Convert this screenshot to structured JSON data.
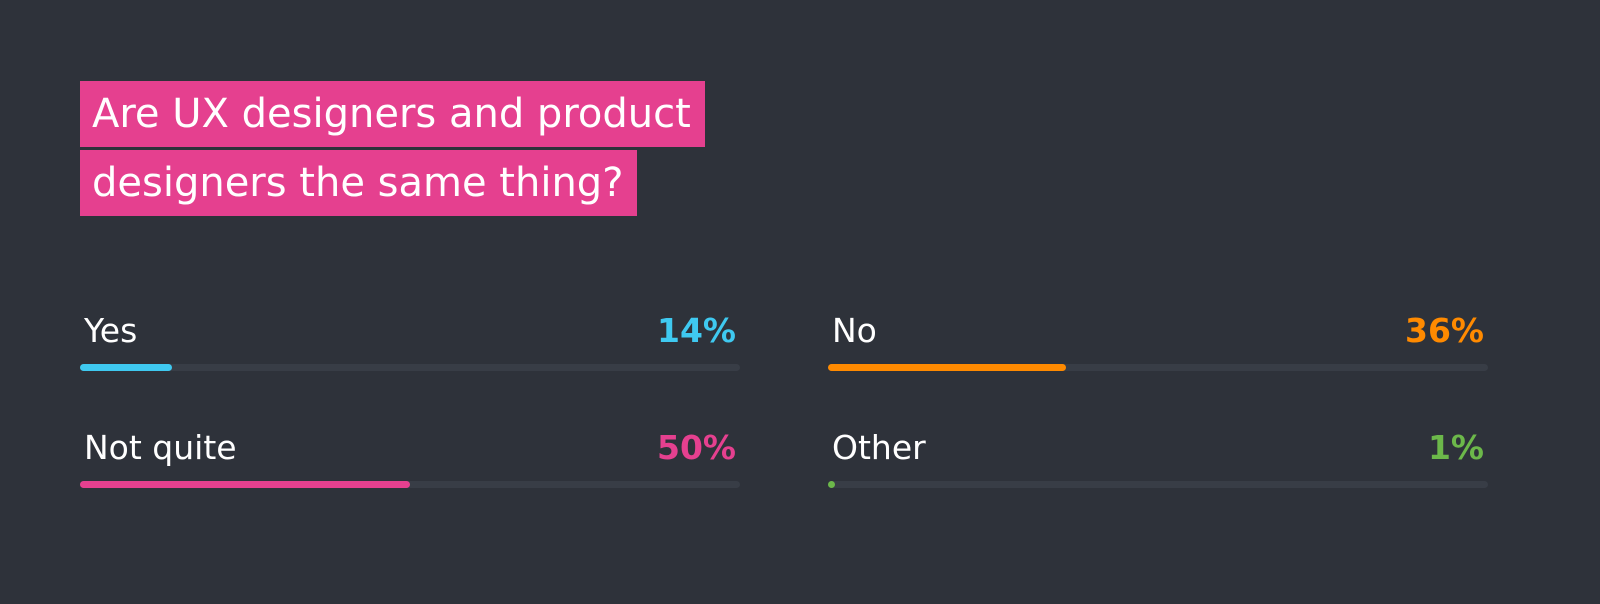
{
  "chart_data": {
    "type": "bar",
    "title": "Are UX designers and product designers the same thing?",
    "categories": [
      "Yes",
      "No",
      "Not quite",
      "Other"
    ],
    "values": [
      14,
      36,
      50,
      1
    ],
    "value_labels": [
      "14%",
      "36%",
      "50%",
      "1%"
    ],
    "colors": [
      "#3fc9f0",
      "#ff8a00",
      "#e5408f",
      "#6cb84a"
    ],
    "xlim": [
      0,
      100
    ]
  }
}
